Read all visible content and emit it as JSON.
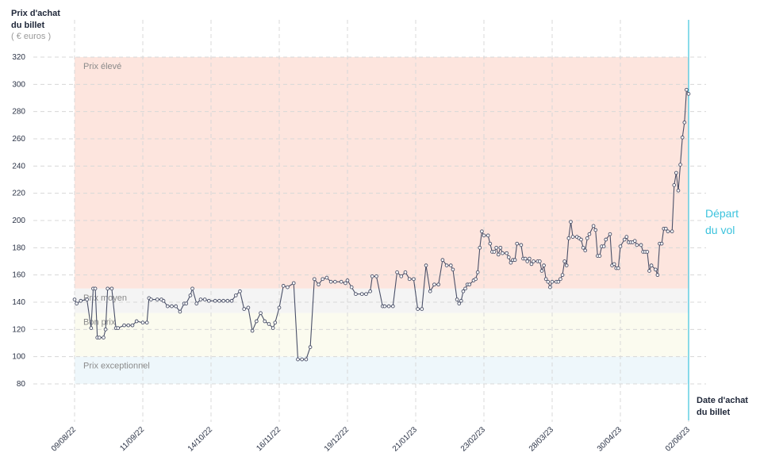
{
  "chart_data": {
    "type": "line",
    "y_title": [
      "Prix d'achat",
      "du billet"
    ],
    "y_unit": "( € euros )",
    "x_title": [
      "Date d'achat",
      "du billet"
    ],
    "ylim": [
      80,
      320
    ],
    "yticks": [
      80,
      100,
      120,
      140,
      160,
      180,
      200,
      220,
      240,
      260,
      280,
      300,
      320
    ],
    "xlim": [
      "09/08/22",
      "02/06/23"
    ],
    "xticks": [
      "09/08/22",
      "11/09/22",
      "14/10/22",
      "16/11/22",
      "19/12/22",
      "21/01/23",
      "23/02/23",
      "28/03/23",
      "30/04/23",
      "02/06/23"
    ],
    "grid": true,
    "color": "#4a5068",
    "bands": [
      {
        "label": "Prix élevé",
        "from": 150,
        "to": 320,
        "color": "#fde5de"
      },
      {
        "label": "Prix moyen",
        "from": 132,
        "to": 150,
        "color": "#f4f4f4"
      },
      {
        "label": "Bon prix",
        "from": 100,
        "to": 132,
        "color": "#fbfbef"
      },
      {
        "label": "Prix exceptionnel",
        "from": 80,
        "to": 100,
        "color": "#eef7fb"
      }
    ],
    "annotation": {
      "x": "02/06/23",
      "label": [
        "Départ",
        "du vol"
      ],
      "color": "#3cc3dd"
    },
    "x": [
      "09/08/22",
      "10/08/22",
      "12/08/22",
      "15/08/22",
      "17/08/22",
      "18/08/22",
      "19/08/22",
      "20/08/22",
      "21/08/22",
      "23/08/22",
      "24/08/22",
      "25/08/22",
      "27/08/22",
      "29/08/22",
      "30/08/22",
      "02/09/22",
      "04/09/22",
      "06/09/22",
      "08/09/22",
      "11/09/22",
      "13/09/22",
      "14/09/22",
      "15/09/22",
      "18/09/22",
      "20/09/22",
      "21/09/22",
      "23/09/22",
      "25/09/22",
      "27/09/22",
      "29/09/22",
      "01/10/22",
      "02/10/22",
      "04/10/22",
      "05/10/22",
      "07/10/22",
      "09/10/22",
      "11/10/22",
      "13/10/22",
      "16/10/22",
      "18/10/22",
      "20/10/22",
      "22/10/22",
      "24/10/22",
      "26/10/22",
      "28/10/22",
      "30/10/22",
      "01/11/22",
      "03/11/22",
      "05/11/22",
      "07/11/22",
      "09/11/22",
      "11/11/22",
      "13/11/22",
      "14/11/22",
      "16/11/22",
      "18/11/22",
      "20/11/22",
      "23/11/22",
      "25/11/22",
      "27/11/22",
      "29/11/22",
      "01/12/22",
      "03/12/22",
      "05/12/22",
      "07/12/22",
      "09/12/22",
      "11/12/22",
      "13/12/22",
      "16/12/22",
      "18/12/22",
      "19/12/22",
      "21/12/22",
      "23/12/22",
      "26/12/22",
      "28/12/22",
      "30/12/22",
      "31/12/22",
      "02/01/23",
      "05/01/23",
      "06/01/23",
      "08/01/23",
      "10/01/23",
      "12/01/23",
      "14/01/23",
      "16/01/23",
      "18/01/23",
      "20/01/23",
      "22/01/23",
      "24/01/23",
      "26/01/23",
      "28/01/23",
      "30/01/23",
      "01/02/23",
      "03/02/23",
      "05/02/23",
      "07/02/23",
      "08/02/23",
      "10/02/23",
      "11/02/23",
      "12/02/23",
      "13/02/23",
      "14/02/23",
      "15/02/23",
      "16/02/23",
      "18/02/23",
      "19/02/23",
      "20/02/23",
      "21/02/23",
      "22/02/23",
      "23/02/23",
      "25/02/23",
      "26/02/23",
      "27/02/23",
      "28/02/23",
      "01/03/23",
      "02/03/23",
      "03/03/23",
      "04/03/23",
      "06/03/23",
      "07/03/23",
      "08/03/23",
      "09/03/23",
      "10/03/23",
      "11/03/23",
      "13/03/23",
      "14/03/23",
      "15/03/23",
      "16/03/23",
      "17/03/23",
      "18/03/23",
      "19/03/23",
      "21/03/23",
      "22/03/23",
      "23/03/23",
      "24/03/23",
      "25/03/23",
      "26/03/23",
      "27/03/23",
      "28/03/23",
      "30/03/23",
      "31/03/23",
      "01/04/23",
      "02/04/23",
      "03/04/23",
      "04/04/23",
      "05/04/23",
      "06/04/23",
      "07/04/23",
      "09/04/23",
      "10/04/23",
      "11/04/23",
      "12/04/23",
      "13/04/23",
      "14/04/23",
      "15/04/23",
      "17/04/23",
      "18/04/23",
      "19/04/23",
      "20/04/23",
      "21/04/23",
      "22/04/23",
      "23/04/23",
      "25/04/23",
      "26/04/23",
      "27/04/23",
      "28/04/23",
      "29/04/23",
      "30/04/23",
      "02/05/23",
      "03/05/23",
      "04/05/23",
      "05/05/23",
      "06/05/23",
      "07/05/23",
      "08/05/23",
      "10/05/23",
      "11/05/23",
      "12/05/23",
      "13/05/23",
      "14/05/23",
      "15/05/23",
      "17/05/23",
      "18/05/23",
      "19/05/23",
      "20/05/23",
      "21/05/23",
      "22/05/23",
      "23/05/23",
      "25/05/23",
      "26/05/23",
      "27/05/23",
      "28/05/23",
      "29/05/23",
      "30/05/23",
      "31/05/23",
      "01/06/23",
      "02/06/23"
    ],
    "values": [
      142,
      139,
      141,
      142,
      121,
      150,
      150,
      114,
      114,
      114,
      120,
      150,
      150,
      121,
      121,
      123,
      123,
      123,
      126,
      125,
      125,
      143,
      142,
      142,
      142,
      141,
      137,
      137,
      137,
      133,
      139,
      139,
      145,
      150,
      139,
      142,
      142,
      141,
      141,
      141,
      141,
      141,
      141,
      145,
      148,
      135,
      136,
      119,
      126,
      132,
      126,
      124,
      121,
      125,
      136,
      152,
      151,
      154,
      98,
      98,
      98,
      107,
      157,
      153,
      157,
      158,
      155,
      155,
      155,
      154,
      156,
      151,
      146,
      146,
      146,
      148,
      159,
      159,
      137,
      137,
      137,
      137,
      162,
      159,
      162,
      157,
      157,
      135,
      135,
      167,
      148,
      153,
      153,
      171,
      167,
      167,
      164,
      142,
      139,
      141,
      148,
      150,
      153,
      153,
      156,
      157,
      162,
      180,
      192,
      189,
      189,
      183,
      177,
      177,
      180,
      175,
      180,
      176,
      176,
      173,
      169,
      171,
      171,
      183,
      182,
      172,
      172,
      170,
      172,
      168,
      170,
      170,
      170,
      163,
      167,
      157,
      155,
      151,
      155,
      155,
      155,
      157,
      160,
      170,
      167,
      187,
      199,
      188,
      188,
      187,
      186,
      180,
      178,
      187,
      190,
      196,
      193,
      174,
      174,
      181,
      181,
      186,
      190,
      167,
      168,
      165,
      165,
      181,
      186,
      188,
      184,
      184,
      184,
      185,
      182,
      182,
      177,
      177,
      177,
      163,
      167,
      164,
      160,
      183,
      183,
      194,
      194,
      192,
      192,
      226,
      235,
      222,
      241,
      261,
      272,
      296,
      293
    ]
  }
}
